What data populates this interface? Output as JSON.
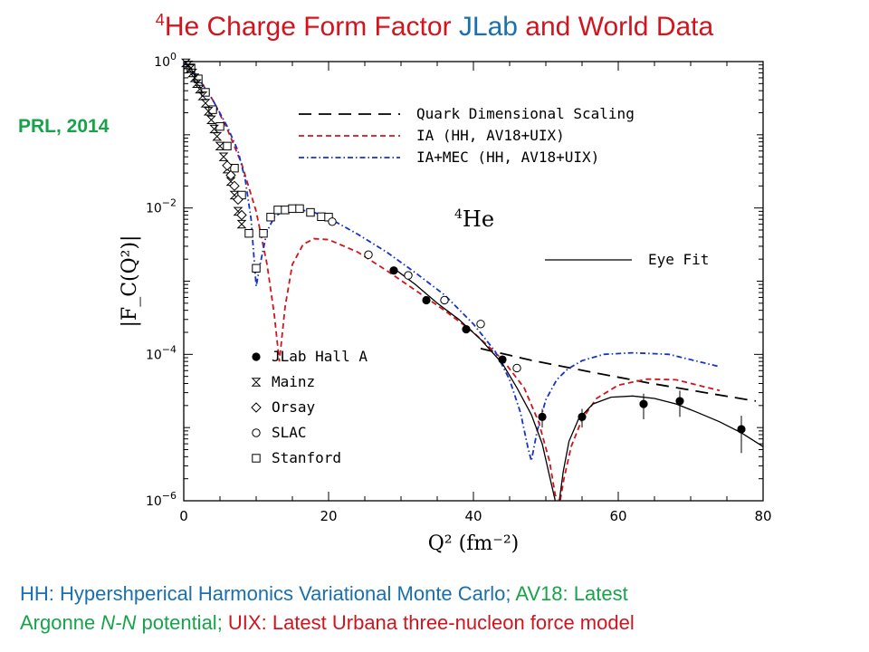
{
  "title": {
    "sup": "4",
    "part1": "He Charge Form Factor ",
    "part2": "JLab",
    "part3": " and World Data"
  },
  "badge": "PRL, 2014",
  "caption": {
    "l1a": "HH: Hypershperical Harmonics Variational Monte Carlo; ",
    "l1b": "AV18: Latest",
    "l2a": "Argonne ",
    "l2b": "N-N",
    "l2c": " potential; ",
    "l2d": "UIX: ",
    "l2e": "Latest Urbana three-nucleon force model"
  },
  "chart_data": {
    "type": "scatter",
    "xlabel": "Q² (fm⁻²)",
    "ylabel": "|F_C(Q²)|",
    "xlim": [
      0,
      80
    ],
    "ylim": [
      1e-06,
      1
    ],
    "yscale": "log",
    "xticks": [
      "0",
      "20",
      "40",
      "60",
      "80"
    ],
    "yticks": [
      {
        "base": "10",
        "exp": "0",
        "value": 1
      },
      {
        "base": "10",
        "exp": "−2",
        "value": 0.01
      },
      {
        "base": "10",
        "exp": "−4",
        "value": 0.0001
      },
      {
        "base": "10",
        "exp": "−6",
        "value": 1e-06
      }
    ],
    "annotation": {
      "sup": "4",
      "text": "He"
    },
    "legend_curves": [
      {
        "name": "Quark Dimensional Scaling",
        "color": "#000000",
        "dash": "dashed"
      },
      {
        "name": "IA (HH, AV18+UIX)",
        "color": "#d2141e",
        "dash": "short-dashed"
      },
      {
        "name": "IA+MEC (HH, AV18+UIX)",
        "color": "#1533c8",
        "dash": "dash-dot"
      }
    ],
    "legend_eyefit": {
      "name": "Eye Fit",
      "color": "#000000",
      "dash": "solid"
    },
    "legend_markers": [
      {
        "name": "JLab Hall A",
        "marker": "filled-circle"
      },
      {
        "name": "Mainz",
        "marker": "hourglass"
      },
      {
        "name": "Orsay",
        "marker": "diamond"
      },
      {
        "name": "SLAC",
        "marker": "open-circle"
      },
      {
        "name": "Stanford",
        "marker": "open-square"
      }
    ],
    "curves": [
      {
        "name": "Quark Dimensional Scaling",
        "color": "#000000",
        "dash": "dashed",
        "x": [
          41,
          48,
          56,
          64,
          72,
          79
        ],
        "y": [
          0.00012,
          8.3e-05,
          5.8e-05,
          4.1e-05,
          3e-05,
          2.3e-05
        ]
      },
      {
        "name": "IA (HH, AV18+UIX)",
        "color": "#d2141e",
        "dash": "short-dashed",
        "x": [
          0,
          1,
          2,
          4,
          6,
          8,
          10,
          11.5,
          12.5,
          13.2,
          14,
          15,
          16.5,
          18,
          20,
          24,
          28,
          32,
          36,
          40,
          44,
          47,
          49,
          50.5,
          51.3,
          51.9,
          52.5,
          53.5,
          55,
          57,
          60,
          64,
          68,
          74
        ],
        "y": [
          1,
          0.8,
          0.6,
          0.3,
          0.12,
          0.04,
          0.009,
          0.0017,
          0.00035,
          8e-05,
          0.00045,
          0.0017,
          0.0032,
          0.0038,
          0.0037,
          0.0025,
          0.0014,
          0.00075,
          0.0004,
          0.0002,
          8.5e-05,
          3.5e-05,
          1.2e-05,
          3.5e-06,
          1.2e-06,
          9e-07,
          2e-06,
          5.5e-06,
          1.3e-05,
          2.5e-05,
          3.8e-05,
          4.6e-05,
          4.5e-05,
          3.2e-05
        ]
      },
      {
        "name": "IA+MEC (HH, AV18+UIX)",
        "color": "#1533c8",
        "dash": "dash-dot",
        "x": [
          0,
          1,
          2,
          4,
          6,
          7.5,
          8.5,
          9.3,
          10,
          10.6,
          11.5,
          12.5,
          14,
          16,
          18,
          20,
          24,
          28,
          32,
          36,
          40,
          43,
          45,
          46.5,
          47.5,
          48,
          48.8,
          50,
          51.5,
          53,
          55,
          58,
          62,
          67,
          74
        ],
        "y": [
          1,
          0.8,
          0.6,
          0.3,
          0.13,
          0.06,
          0.024,
          0.007,
          0.00085,
          0.0018,
          0.0048,
          0.0075,
          0.0095,
          0.0095,
          0.0087,
          0.0073,
          0.0044,
          0.0025,
          0.0013,
          0.00065,
          0.00026,
          0.00011,
          4.5e-05,
          1.6e-05,
          5.5e-06,
          3.5e-06,
          9e-06,
          2.4e-05,
          4.5e-05,
          6.3e-05,
          8.2e-05,
          0.0001,
          0.000105,
          0.0001,
          6.8e-05
        ]
      },
      {
        "name": "Eye Fit",
        "color": "#000000",
        "dash": "solid",
        "x": [
          29,
          32,
          35,
          38,
          41,
          44,
          46,
          48,
          49.5,
          50.5,
          51.3,
          51.8,
          52.4,
          53.2,
          54.5,
          56.5,
          59,
          62,
          65,
          68,
          71,
          74,
          77,
          80
        ],
        "y": [
          0.0015,
          0.0009,
          0.0005,
          0.0003,
          0.00016,
          7.5e-05,
          3.5e-05,
          1.5e-05,
          6e-06,
          2.2e-06,
          1e-06,
          9e-07,
          2.5e-06,
          6.5e-06,
          1.3e-05,
          2.1e-05,
          2.6e-05,
          2.7e-05,
          2.5e-05,
          2.1e-05,
          1.6e-05,
          1.2e-05,
          8.5e-06,
          5.5e-06
        ]
      }
    ],
    "points": {
      "JLab Hall A": {
        "x": [
          29,
          33.5,
          39,
          44,
          49.5,
          55,
          63.5,
          68.5,
          77
        ],
        "y": [
          0.0014,
          0.00055,
          0.00022,
          8.5e-05,
          1.4e-05,
          1.4e-05,
          2.1e-05,
          2.3e-05,
          9.5e-06
        ],
        "yerr": [
          0,
          0,
          0,
          0,
          4e-06,
          4e-06,
          8e-06,
          9e-06,
          5e-06
        ]
      },
      "Mainz": {
        "x": [
          0.3,
          0.6,
          0.9,
          1.2,
          1.5,
          1.8,
          2.2,
          2.6,
          3,
          3.4,
          3.8,
          4.2,
          4.6,
          5,
          5.5,
          6,
          6.5,
          7,
          7.5,
          8
        ],
        "y": [
          0.96,
          0.9,
          0.8,
          0.7,
          0.6,
          0.5,
          0.42,
          0.34,
          0.27,
          0.21,
          0.16,
          0.12,
          0.095,
          0.07,
          0.05,
          0.034,
          0.023,
          0.015,
          0.009,
          0.006
        ]
      },
      "Orsay": {
        "x": [
          6,
          6.5,
          7,
          7.5,
          8
        ],
        "y": [
          0.038,
          0.028,
          0.02,
          0.013,
          0.008
        ]
      },
      "SLAC": {
        "x": [
          20.5,
          25.5,
          31,
          36,
          41,
          46
        ],
        "y": [
          0.0065,
          0.0023,
          0.0012,
          0.00055,
          0.00026,
          6.5e-05
        ]
      },
      "Stanford": {
        "x": [
          1,
          2,
          3,
          4,
          5,
          6,
          7,
          8,
          9,
          10,
          11,
          12,
          13,
          14,
          15,
          16,
          17.5,
          19,
          20
        ],
        "y": [
          0.82,
          0.58,
          0.38,
          0.22,
          0.13,
          0.07,
          0.035,
          0.015,
          0.0045,
          0.0015,
          0.0045,
          0.0075,
          0.0094,
          0.0094,
          0.0098,
          0.0098,
          0.0087,
          0.0076,
          0.0075
        ]
      }
    }
  }
}
